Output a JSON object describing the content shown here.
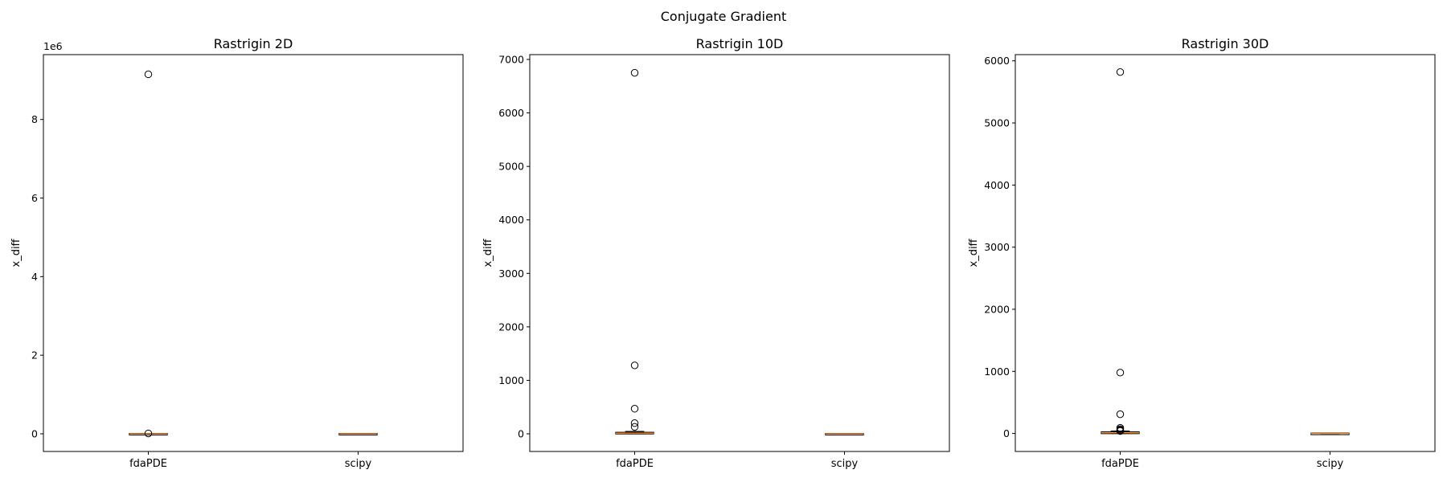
{
  "chart_data": {
    "suptitle": "Conjugate Gradient",
    "type": "box",
    "charts": [
      {
        "title": "Rastrigin 2D",
        "ylabel": "x_diff",
        "categories": [
          "fdaPDE",
          "scipy"
        ],
        "ylim": [
          -450000,
          9650000
        ],
        "yticks": [
          0,
          2000000,
          4000000,
          6000000,
          8000000
        ],
        "ytick_labels": [
          "0",
          "2",
          "4",
          "6",
          "8"
        ],
        "offset_text": "1e6",
        "boxes": [
          {
            "name": "fdaPDE",
            "q1": 0,
            "median": 0,
            "q3": 0,
            "whisker_low": 0,
            "whisker_high": 0,
            "outliers": [
              9150000,
              9000
            ]
          },
          {
            "name": "scipy",
            "q1": 0,
            "median": 0,
            "q3": 0,
            "whisker_low": 0,
            "whisker_high": 0,
            "outliers": []
          }
        ]
      },
      {
        "title": "Rastrigin 10D",
        "ylabel": "x_diff",
        "categories": [
          "fdaPDE",
          "scipy"
        ],
        "ylim": [
          -330,
          7090
        ],
        "yticks": [
          0,
          1000,
          2000,
          3000,
          4000,
          5000,
          6000,
          7000
        ],
        "ytick_labels": [
          "0",
          "1000",
          "2000",
          "3000",
          "4000",
          "5000",
          "6000",
          "7000"
        ],
        "offset_text": "",
        "boxes": [
          {
            "name": "fdaPDE",
            "q1": 5,
            "median": 12,
            "q3": 22,
            "whisker_low": 0,
            "whisker_high": 45,
            "outliers": [
              6750,
              1280,
              470,
              200,
              130
            ]
          },
          {
            "name": "scipy",
            "q1": 0,
            "median": 0,
            "q3": 0,
            "whisker_low": 0,
            "whisker_high": 0,
            "outliers": []
          }
        ]
      },
      {
        "title": "Rastrigin 30D",
        "ylabel": "x_diff",
        "categories": [
          "fdaPDE",
          "scipy"
        ],
        "ylim": [
          -290,
          6100
        ],
        "yticks": [
          0,
          1000,
          2000,
          3000,
          4000,
          5000,
          6000
        ],
        "ytick_labels": [
          "0",
          "1000",
          "2000",
          "3000",
          "4000",
          "5000",
          "6000"
        ],
        "offset_text": "",
        "boxes": [
          {
            "name": "fdaPDE",
            "q1": 3,
            "median": 10,
            "q3": 20,
            "whisker_low": 0,
            "whisker_high": 40,
            "outliers": [
              5820,
              980,
              310,
              90,
              70,
              55,
              45,
              40
            ]
          },
          {
            "name": "scipy",
            "q1": 0,
            "median": 0,
            "q3": 0,
            "whisker_low": 0,
            "whisker_high": 0,
            "outliers": []
          }
        ]
      }
    ]
  },
  "colors": {
    "median": "#ff7f0e",
    "box": "#000000"
  }
}
